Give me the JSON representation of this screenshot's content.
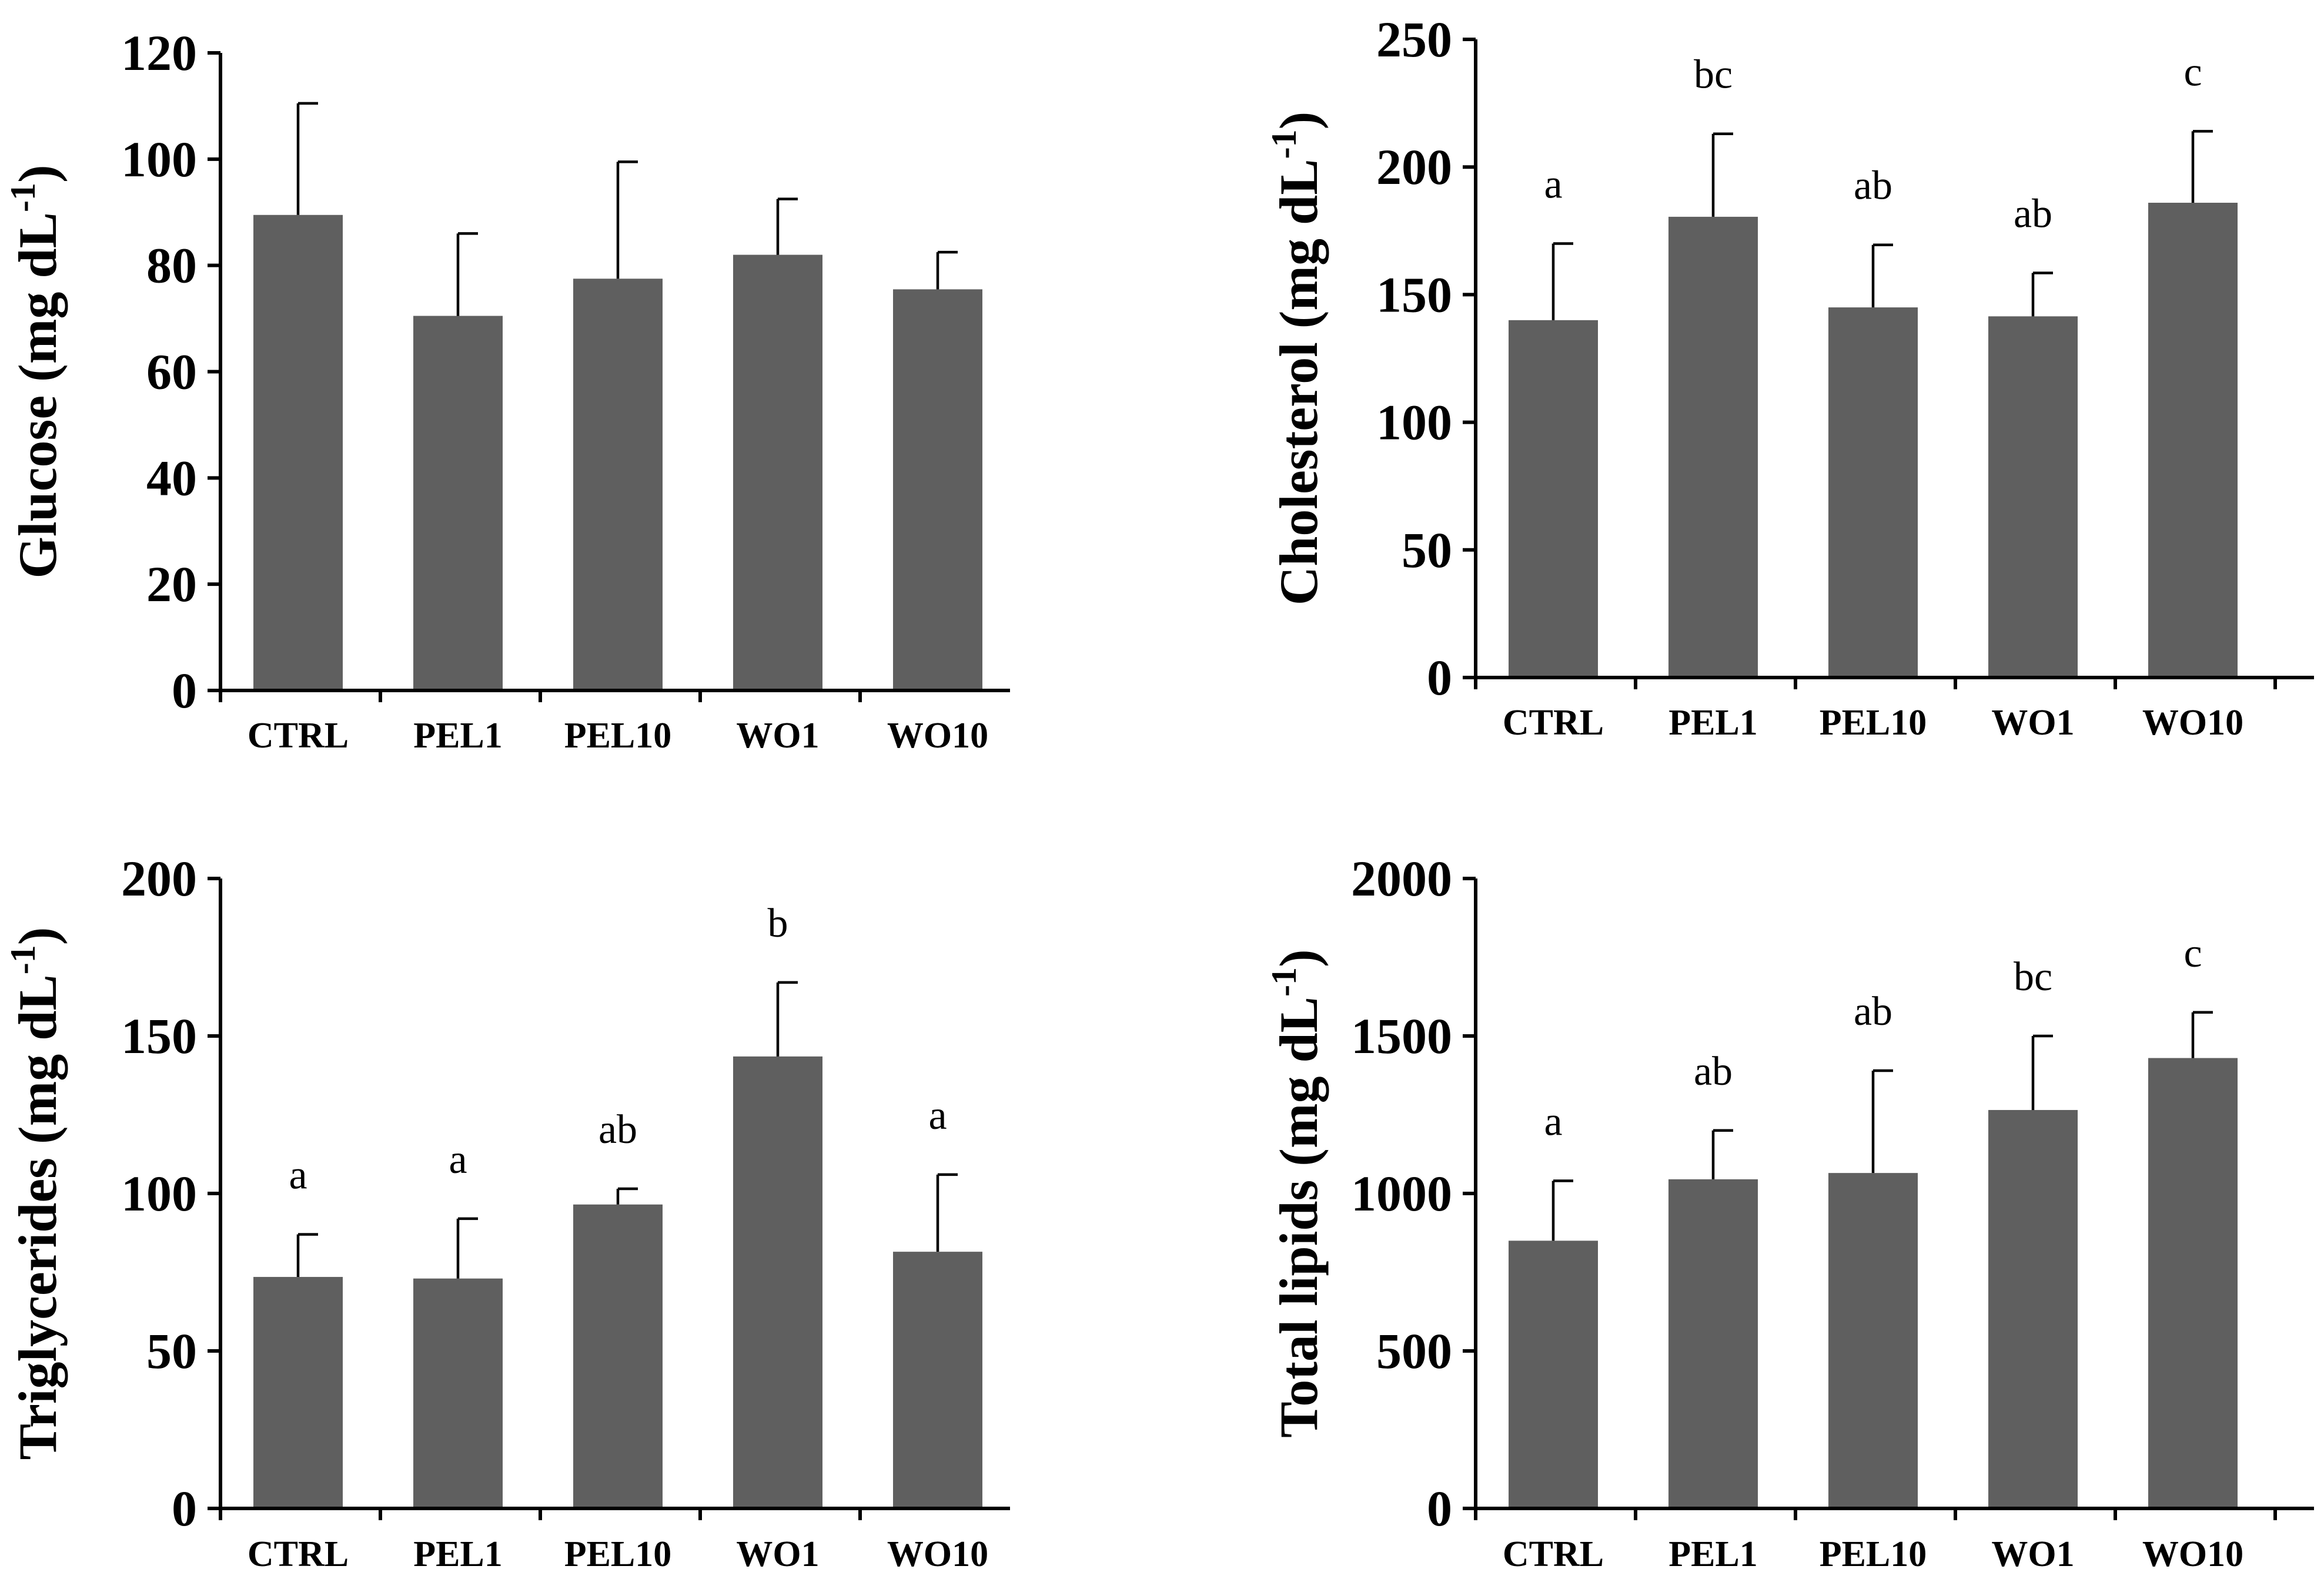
{
  "colors": {
    "bar": "#5f5f5f",
    "axis": "#000000",
    "error": "#000000"
  },
  "chart_data": [
    {
      "type": "bar",
      "title": "",
      "ylabel": "Glucose (mg dL",
      "ylabel_sup": "-1",
      "ylabel_end": ")",
      "xlabel": "",
      "categories": [
        "CTRL",
        "PEL1",
        "PEL10",
        "WO1",
        "WO10"
      ],
      "values": [
        89.5,
        70.5,
        77.5,
        82,
        75.5
      ],
      "errors": [
        21,
        15.5,
        22,
        10.5,
        7
      ],
      "significance": [],
      "ylim": [
        0,
        120
      ],
      "yticks": [
        "0",
        "20",
        "40",
        "60",
        "80",
        "100",
        "120"
      ],
      "yticks_values": [
        0,
        20,
        40,
        60,
        80,
        100,
        120
      ]
    },
    {
      "type": "bar",
      "title": "",
      "ylabel": "Cholesterol (mg dL",
      "ylabel_sup": "-1",
      "ylabel_end": ")",
      "xlabel": "",
      "categories": [
        "CTRL",
        "PEL1",
        "PEL10",
        "WO1",
        "WO10"
      ],
      "values": [
        140,
        180.5,
        145,
        141.5,
        186
      ],
      "errors": [
        30,
        32.5,
        24.5,
        17,
        28
      ],
      "significance": [
        "a",
        "bc",
        "ab",
        "ab",
        "c"
      ],
      "ylim": [
        0,
        250
      ],
      "yticks": [
        "0",
        "50",
        "100",
        "150",
        "200",
        "250"
      ],
      "yticks_values": [
        0,
        50,
        100,
        150,
        200,
        250
      ]
    },
    {
      "type": "bar",
      "title": "",
      "ylabel": "Triglycerides (mg dL",
      "ylabel_sup": "-1",
      "ylabel_end": ")",
      "xlabel": "",
      "categories": [
        "CTRL",
        "PEL1",
        "PEL10",
        "WO1",
        "WO10"
      ],
      "values": [
        73.5,
        73,
        96.5,
        143.5,
        81.5
      ],
      "errors": [
        13.5,
        19,
        5,
        23.5,
        24.5
      ],
      "significance": [
        "a",
        "a",
        "ab",
        "b",
        "a"
      ],
      "ylim": [
        0,
        200
      ],
      "yticks": [
        "0",
        "50",
        "100",
        "150",
        "200"
      ],
      "yticks_values": [
        0,
        50,
        100,
        150,
        200
      ]
    },
    {
      "type": "bar",
      "title": "",
      "ylabel": "Total lipids (mg dL",
      "ylabel_sup": "-1",
      "ylabel_end": ")",
      "xlabel": "",
      "categories": [
        "CTRL",
        "PEL1",
        "PEL10",
        "WO1",
        "WO10"
      ],
      "values": [
        850,
        1045,
        1065,
        1265,
        1430
      ],
      "errors": [
        190,
        155,
        325,
        235,
        145
      ],
      "significance": [
        "a",
        "ab",
        "ab",
        "bc",
        "c"
      ],
      "ylim": [
        0,
        2000
      ],
      "yticks": [
        "0",
        "500",
        "1000",
        "1500",
        "2000"
      ],
      "yticks_values": [
        0,
        500,
        1000,
        1500,
        2000
      ]
    }
  ]
}
